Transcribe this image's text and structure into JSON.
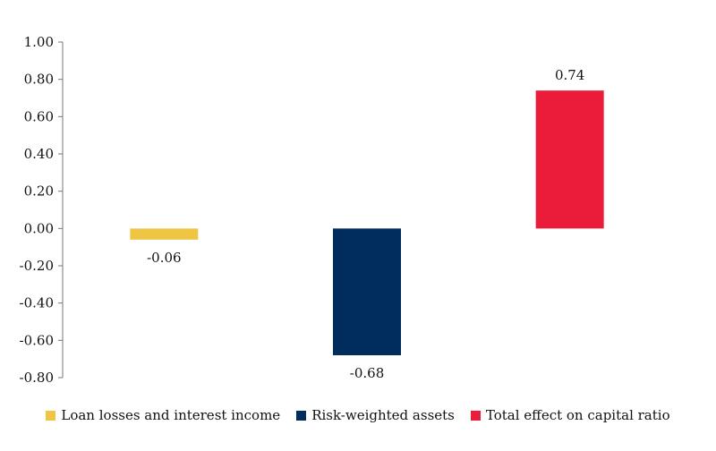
{
  "chart_data": {
    "type": "bar",
    "title": "",
    "xlabel": "",
    "ylabel": "",
    "categories": [
      "Loan losses and interest income",
      "Risk-weighted assets",
      "Total effect on capital ratio"
    ],
    "values": [
      -0.06,
      -0.68,
      0.74
    ],
    "data_labels": [
      "-0.06",
      "-0.68",
      "0.74"
    ],
    "colors": [
      "#EEC643",
      "#002D5E",
      "#EB1B3A"
    ],
    "ylim": [
      -0.8,
      1.0
    ],
    "yticks": [
      1.0,
      0.8,
      0.6,
      0.4,
      0.2,
      0.0,
      -0.2,
      -0.4,
      -0.6,
      -0.8
    ],
    "ytick_labels": [
      "1.00",
      "0.80",
      "0.60",
      "0.40",
      "0.20",
      "0.00",
      "-0.20",
      "-0.40",
      "-0.60",
      "-0.80"
    ],
    "grid": false,
    "legend_position": "bottom"
  }
}
